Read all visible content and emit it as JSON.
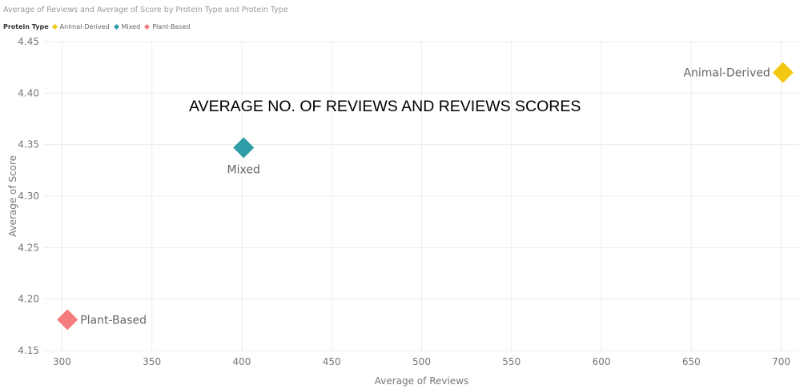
{
  "chart_data": {
    "type": "scatter",
    "title": "Average of Reviews and Average of Score by Protein Type and Protein Type",
    "annotation": "AVERAGE NO. OF REVIEWS AND REVIEWS SCORES",
    "xlabel": "Average of Reviews",
    "ylabel": "Average of Score",
    "xlim": [
      290,
      710
    ],
    "ylim": [
      4.15,
      4.45
    ],
    "x_ticks": [
      300,
      350,
      400,
      450,
      500,
      550,
      600,
      650,
      700
    ],
    "y_ticks": [
      4.15,
      4.2,
      4.25,
      4.3,
      4.35,
      4.4,
      4.45
    ],
    "x_tick_labels": [
      "300",
      "350",
      "400",
      "450",
      "500",
      "550",
      "600",
      "650",
      "700"
    ],
    "y_tick_labels": [
      "4.15",
      "4.20",
      "4.25",
      "4.30",
      "4.35",
      "4.40",
      "4.45"
    ],
    "grid": true,
    "legend": {
      "title": "Protein Type",
      "placement": "top-left"
    },
    "series": [
      {
        "name": "Animal-Derived",
        "color": "#F2C811",
        "x": 701,
        "y": 4.42,
        "label": "Animal-Derived",
        "label_side": "left"
      },
      {
        "name": "Mixed",
        "color": "#2E9DA8",
        "x": 401,
        "y": 4.347,
        "label": "Mixed",
        "label_side": "below"
      },
      {
        "name": "Plant-Based",
        "color": "#F47C7C",
        "x": 303,
        "y": 4.18,
        "label": "Plant-Based",
        "label_side": "right"
      }
    ]
  }
}
